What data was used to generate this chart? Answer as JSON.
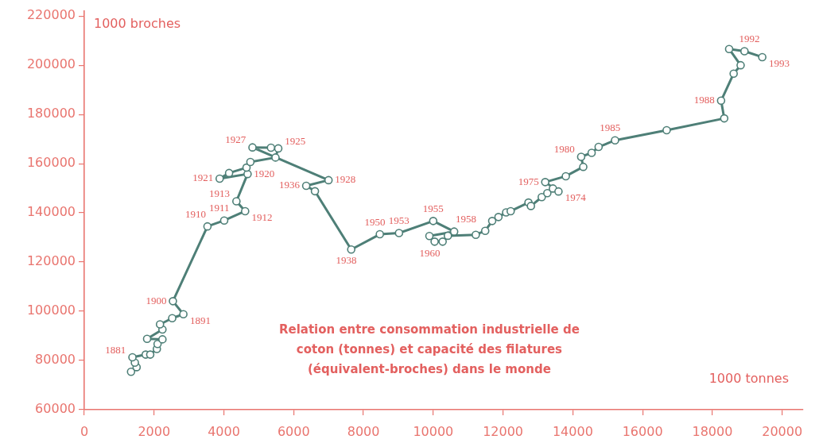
{
  "chart_data": {
    "type": "line",
    "title": "Relation entre consommation industrielle de\ncoton (tonnes) et capacité des filatures\n(équivalent-broches) dans le monde",
    "xlabel": "1000 tonnes",
    "ylabel": "1000 broches",
    "x": [
      1340,
      1500,
      1450,
      1380,
      1760,
      1890,
      2080,
      2100,
      2240,
      1800,
      2240,
      2170,
      2520,
      2840,
      2540,
      3530,
      4010,
      4610,
      4360,
      4680,
      3880,
      4150,
      4650,
      4760,
      5480,
      5560,
      5350,
      4820,
      7000,
      6360,
      6610,
      7650,
      8470,
      9020,
      10000,
      10600,
      9890,
      10040,
      10270,
      10420,
      11220,
      11490,
      11690,
      11870,
      12090,
      12220,
      12730,
      12800,
      13110,
      13270,
      13430,
      13590,
      13210,
      13800,
      14300,
      14240,
      14540,
      14740,
      15210,
      16690,
      18340,
      18250,
      18610,
      18810,
      18480,
      18920,
      19430
    ],
    "series": [
      {
        "color": "#4e7f77",
        "values": [
          75400,
          77300,
          79100,
          81300,
          82400,
          82400,
          84700,
          86700,
          88600,
          88800,
          92600,
          94700,
          97200,
          98800,
          104100,
          134500,
          136900,
          140700,
          144700,
          155800,
          153900,
          156200,
          158400,
          160700,
          162500,
          166200,
          166500,
          166600,
          153300,
          151000,
          148800,
          125100,
          131300,
          131800,
          136700,
          132400,
          130600,
          128300,
          128300,
          130700,
          131100,
          132700,
          136700,
          138300,
          140200,
          140700,
          144200,
          142800,
          146400,
          148000,
          149900,
          148700,
          152500,
          154900,
          158700,
          162800,
          164400,
          166800,
          169500,
          173600,
          178400,
          185600,
          196600,
          200000,
          206600,
          205700,
          203300
        ]
      }
    ],
    "xlim": [
      0,
      20600
    ],
    "ylim": [
      60000,
      222000
    ],
    "xticks": [
      0,
      2000,
      4000,
      6000,
      8000,
      10000,
      12000,
      14000,
      16000,
      18000,
      20000
    ],
    "yticks": [
      60000,
      80000,
      100000,
      120000,
      140000,
      160000,
      180000,
      200000,
      220000
    ],
    "marker": "circle",
    "line_style": "solid",
    "annotations": [
      {
        "text": "1881",
        "x": 1380,
        "y": 81300
      },
      {
        "text": "1891",
        "x": 2840,
        "y": 98800
      },
      {
        "text": "1900",
        "x": 2540,
        "y": 104100
      },
      {
        "text": "1910",
        "x": 3530,
        "y": 134500
      },
      {
        "text": "1911",
        "x": 4010,
        "y": 136900
      },
      {
        "text": "1912",
        "x": 4610,
        "y": 140700
      },
      {
        "text": "1913",
        "x": 4360,
        "y": 144700
      },
      {
        "text": "1920",
        "x": 4680,
        "y": 155800
      },
      {
        "text": "1921",
        "x": 3880,
        "y": 153900
      },
      {
        "text": "1925",
        "x": 5560,
        "y": 166200
      },
      {
        "text": "1927",
        "x": 4820,
        "y": 166600
      },
      {
        "text": "1928",
        "x": 7000,
        "y": 153300
      },
      {
        "text": "1936",
        "x": 6360,
        "y": 151000
      },
      {
        "text": "1938",
        "x": 7650,
        "y": 125100
      },
      {
        "text": "1950",
        "x": 8470,
        "y": 131300
      },
      {
        "text": "1953",
        "x": 9020,
        "y": 131800
      },
      {
        "text": "1955",
        "x": 10000,
        "y": 136700
      },
      {
        "text": "1958",
        "x": 10600,
        "y": 132400
      },
      {
        "text": "1960",
        "x": 10040,
        "y": 128300
      },
      {
        "text": "1974",
        "x": 13590,
        "y": 148700
      },
      {
        "text": "1975",
        "x": 13210,
        "y": 152500
      },
      {
        "text": "1980",
        "x": 14240,
        "y": 162800
      },
      {
        "text": "1985",
        "x": 15210,
        "y": 169500
      },
      {
        "text": "1988",
        "x": 18250,
        "y": 185600
      },
      {
        "text": "1992",
        "x": 18920,
        "y": 205700
      },
      {
        "text": "1993",
        "x": 19430,
        "y": 203300
      }
    ]
  }
}
